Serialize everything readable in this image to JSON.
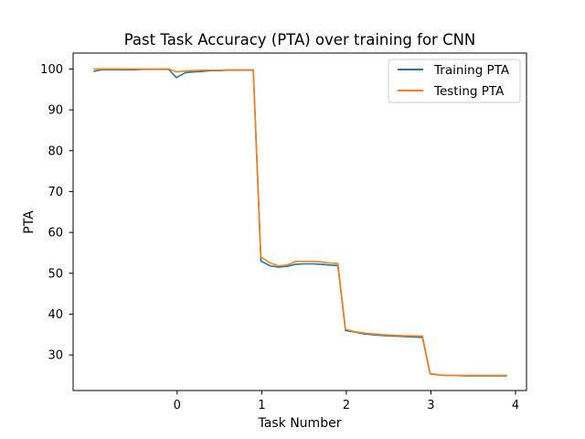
{
  "chart_data": {
    "type": "line",
    "title": "Past Task Accuracy (PTA) over training for CNN",
    "xlabel": "Task Number",
    "ylabel": "PTA",
    "xlim": [
      -1.23,
      4.13
    ],
    "ylim": [
      21.3,
      103.9
    ],
    "xticks": [
      0,
      1,
      2,
      3,
      4
    ],
    "yticks": [
      30,
      40,
      50,
      60,
      70,
      80,
      90,
      100
    ],
    "grid": false,
    "legend_position": "top-right",
    "series": [
      {
        "name": "Training PTA",
        "color": "#1f77b4",
        "x": [
          -0.99,
          -0.9,
          -0.8,
          -0.7,
          -0.6,
          -0.5,
          -0.4,
          -0.3,
          -0.2,
          -0.1,
          -0.01,
          0.1,
          0.2,
          0.3,
          0.4,
          0.5,
          0.6,
          0.7,
          0.8,
          0.9,
          0.99,
          1.1,
          1.2,
          1.3,
          1.4,
          1.5,
          1.6,
          1.7,
          1.8,
          1.9,
          1.99,
          2.1,
          2.2,
          2.3,
          2.4,
          2.5,
          2.6,
          2.7,
          2.8,
          2.9,
          2.99,
          3.1,
          3.2,
          3.3,
          3.4,
          3.5,
          3.6,
          3.7,
          3.8,
          3.9
        ],
        "y": [
          99.4,
          99.8,
          99.8,
          99.8,
          99.8,
          99.8,
          99.9,
          99.9,
          99.9,
          99.9,
          97.9,
          99.1,
          99.3,
          99.4,
          99.6,
          99.6,
          99.7,
          99.7,
          99.7,
          99.7,
          53.0,
          51.8,
          51.5,
          51.7,
          52.2,
          52.3,
          52.3,
          52.2,
          52.0,
          51.9,
          36.0,
          35.6,
          35.2,
          35.0,
          34.8,
          34.7,
          34.6,
          34.5,
          34.4,
          34.3,
          25.4,
          25.1,
          25.0,
          25.0,
          24.9,
          24.9,
          24.9,
          24.9,
          24.9,
          24.9
        ]
      },
      {
        "name": "Testing PTA",
        "color": "#ff7f0e",
        "x": [
          -0.99,
          -0.9,
          -0.8,
          -0.7,
          -0.6,
          -0.5,
          -0.4,
          -0.3,
          -0.2,
          -0.1,
          -0.01,
          0.1,
          0.2,
          0.3,
          0.4,
          0.5,
          0.6,
          0.7,
          0.8,
          0.9,
          0.99,
          1.1,
          1.2,
          1.3,
          1.4,
          1.5,
          1.6,
          1.7,
          1.8,
          1.9,
          1.99,
          2.1,
          2.2,
          2.3,
          2.4,
          2.5,
          2.6,
          2.7,
          2.8,
          2.9,
          2.99,
          3.1,
          3.2,
          3.3,
          3.4,
          3.5,
          3.6,
          3.7,
          3.8,
          3.9
        ],
        "y": [
          100.0,
          100.0,
          100.0,
          100.0,
          100.0,
          100.0,
          100.0,
          100.0,
          100.0,
          100.0,
          99.3,
          99.5,
          99.6,
          99.7,
          99.7,
          99.7,
          99.8,
          99.8,
          99.8,
          99.8,
          54.0,
          52.5,
          51.8,
          52.0,
          52.9,
          52.9,
          52.9,
          52.8,
          52.5,
          52.4,
          36.3,
          35.7,
          35.4,
          35.2,
          35.0,
          34.9,
          34.8,
          34.7,
          34.7,
          34.6,
          25.5,
          25.1,
          25.0,
          25.0,
          25.0,
          25.0,
          25.0,
          25.0,
          25.0,
          25.0
        ]
      }
    ]
  }
}
